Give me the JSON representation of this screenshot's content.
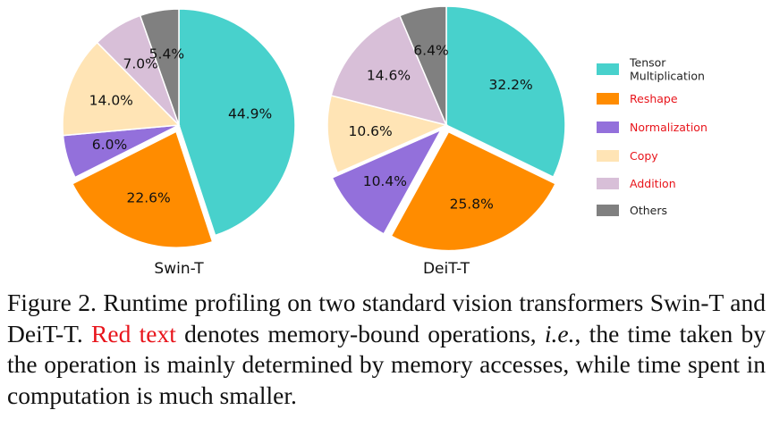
{
  "chart_data": [
    {
      "type": "pie",
      "title": "Swin-T",
      "categories": [
        "Tensor Multiplication",
        "Reshape",
        "Normalization",
        "Copy",
        "Addition",
        "Others"
      ],
      "values": [
        44.9,
        22.6,
        6.0,
        14.0,
        7.0,
        5.4
      ],
      "labels": [
        "44.9%",
        "22.6%",
        "6.0%",
        "14.0%",
        "7.0%",
        "5.4%"
      ]
    },
    {
      "type": "pie",
      "title": "DeiT-T",
      "categories": [
        "Tensor Multiplication",
        "Reshape",
        "Normalization",
        "Copy",
        "Addition",
        "Others"
      ],
      "values": [
        32.2,
        25.8,
        10.4,
        10.6,
        14.6,
        6.4
      ],
      "labels": [
        "32.2%",
        "25.8%",
        "10.4%",
        "10.6%",
        "14.6%",
        "6.4%"
      ]
    }
  ],
  "legend": {
    "items": [
      {
        "label_lines": [
          "Tensor",
          "Multiplication"
        ],
        "color": "#48d1cc",
        "text_color": "#222222"
      },
      {
        "label_lines": [
          "Reshape"
        ],
        "color": "#ff8c00",
        "text_color": "#e8141b"
      },
      {
        "label_lines": [
          "Normalization"
        ],
        "color": "#9370db",
        "text_color": "#e8141b"
      },
      {
        "label_lines": [
          "Copy"
        ],
        "color": "#ffe4b5",
        "text_color": "#e8141b"
      },
      {
        "label_lines": [
          "Addition"
        ],
        "color": "#d8bfd8",
        "text_color": "#e8141b"
      },
      {
        "label_lines": [
          "Others"
        ],
        "color": "#808080",
        "text_color": "#222222"
      }
    ]
  },
  "slice_colors": [
    "#48d1cc",
    "#ff8c00",
    "#9370db",
    "#ffe4b5",
    "#d8bfd8",
    "#808080"
  ],
  "caption": {
    "prefix": "Figure 2.  Runtime profiling on two standard vision transformers Swin-T and DeiT-T. ",
    "red": "Red text",
    "middle": " denotes memory-bound operations, ",
    "italic": "i.e.",
    "suffix": ", the time taken by the operation is mainly determined by memory accesses, while time spent in computation is much smaller."
  }
}
